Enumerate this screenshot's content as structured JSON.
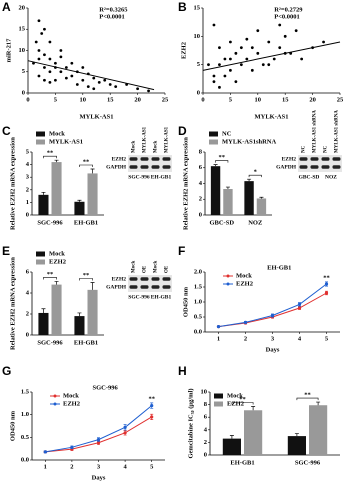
{
  "chart_data": [
    {
      "label": "A",
      "type": "scatter",
      "x": [
        2,
        2.5,
        3,
        1.5,
        2,
        3,
        4,
        2,
        5,
        6,
        1,
        3,
        4,
        5,
        6,
        7,
        8,
        9,
        10,
        11,
        12,
        13,
        14,
        15,
        16,
        18,
        20,
        22,
        3,
        4,
        2,
        5,
        7,
        8,
        9,
        11,
        6,
        4,
        10,
        12
      ],
      "y": [
        17,
        14,
        15,
        12,
        10,
        9,
        8,
        8,
        7,
        8.5,
        7,
        6,
        5,
        6,
        5,
        6,
        4,
        5,
        3,
        4.5,
        3.5,
        2.5,
        3,
        2,
        1.5,
        2,
        1,
        0.5,
        3,
        2.5,
        4,
        3,
        3.5,
        7,
        2,
        1.5,
        10,
        12,
        6,
        1
      ],
      "color": "#000000",
      "fit": {
        "x": [
          0,
          23
        ],
        "y": [
          7.6,
          0.8
        ]
      },
      "annotations": [
        "R²=0.3265",
        "P<0.0001"
      ],
      "xlabel": "MYLK-AS1",
      "ylabel": "miR-217",
      "xlim": [
        0,
        25
      ],
      "ylim": [
        0,
        20
      ],
      "xticks": [
        0,
        5,
        10,
        15,
        20,
        25
      ],
      "yticks": [
        0,
        5,
        10,
        15,
        20
      ]
    },
    {
      "label": "B",
      "type": "scatter",
      "x": [
        2,
        3,
        2,
        4,
        5,
        3,
        6,
        2,
        5,
        7,
        8,
        9,
        10,
        11,
        12,
        13,
        14,
        15,
        16,
        17,
        18,
        20,
        22,
        4,
        6,
        3,
        8,
        10,
        5,
        7,
        1,
        12,
        14,
        9,
        15
      ],
      "y": [
        3,
        5,
        2,
        6,
        4,
        8,
        7,
        12,
        9,
        5,
        6,
        8,
        7,
        5,
        9,
        6,
        8,
        10,
        7,
        11,
        6,
        8,
        9,
        3,
        2,
        1,
        9.5,
        11,
        6,
        8,
        5,
        5,
        12,
        4,
        7
      ],
      "color": "#000000",
      "fit": {
        "x": [
          0,
          25
        ],
        "y": [
          4,
          9
        ]
      },
      "annotations": [
        "R²=0.2729",
        "P<0.0001"
      ],
      "xlabel": "MYLK-AS1",
      "ylabel": "EZH2",
      "xlim": [
        0,
        25
      ],
      "ylim": [
        0,
        15
      ],
      "xticks": [
        0,
        5,
        10,
        15,
        20,
        25
      ],
      "yticks": [
        0,
        5,
        10,
        15
      ]
    },
    {
      "label": "C",
      "type": "bar",
      "categories": [
        "SGC-996",
        "EH-GB1"
      ],
      "series": [
        {
          "name": "Mock",
          "color": "#111111",
          "values": [
            1.6,
            1.05
          ],
          "errors": [
            0.2,
            0.12
          ]
        },
        {
          "name": "MYLK-AS1",
          "color": "#999999",
          "values": [
            4.2,
            3.3
          ],
          "errors": [
            0.15,
            0.35
          ]
        }
      ],
      "significance": [
        "**",
        "**"
      ],
      "ylabel": "Relative EZH2 mRNA expression",
      "ylim": [
        0,
        5
      ],
      "yticks": [
        0,
        1,
        2,
        3,
        4,
        5
      ],
      "legend": "above",
      "blot": {
        "lanes": [
          "Mock",
          "MYLK-AS1",
          "Mock",
          "MYLK-AS1"
        ],
        "rows": [
          "EZH2",
          "GAPDH"
        ],
        "groups": [
          "SGC-996",
          "EH-GB1"
        ]
      }
    },
    {
      "label": "D",
      "type": "bar",
      "categories": [
        "GBC-SD",
        "NOZ"
      ],
      "series": [
        {
          "name": "NC",
          "color": "#111111",
          "values": [
            6.2,
            4.3
          ],
          "errors": [
            0.2,
            0.25
          ]
        },
        {
          "name": "MYLK-AS1shRNA",
          "color": "#999999",
          "values": [
            3.3,
            2.1
          ],
          "errors": [
            0.25,
            0.15
          ]
        }
      ],
      "significance": [
        "**",
        "*"
      ],
      "ylabel": "Relative EZH2 mRNA expression",
      "ylim": [
        0,
        8
      ],
      "yticks": [
        0,
        2,
        4,
        6,
        8
      ],
      "legend": "above",
      "blot": {
        "lanes": [
          "NC",
          "MYLK-AS1 shRNA",
          "NC",
          "MYLK-AS1 shRNA"
        ],
        "rows": [
          "EZH2",
          "GAPDH"
        ],
        "groups": [
          "GBC-SD",
          "NOZ"
        ]
      }
    },
    {
      "label": "E",
      "type": "bar",
      "categories": [
        "SGC-996",
        "EH-GB1"
      ],
      "series": [
        {
          "name": "Mock",
          "color": "#111111",
          "values": [
            2.1,
            1.8
          ],
          "errors": [
            0.4,
            0.3
          ]
        },
        {
          "name": "EZH2",
          "color": "#999999",
          "values": [
            4.8,
            4.3
          ],
          "errors": [
            0.3,
            0.7
          ]
        }
      ],
      "significance": [
        "**",
        "**"
      ],
      "ylabel": "Relative EZH2 mRNA expression",
      "ylim": [
        0,
        6
      ],
      "yticks": [
        0,
        2,
        4,
        6
      ],
      "legend": "above",
      "blot": {
        "lanes": [
          "Mock",
          "OE",
          "Mock",
          "OE"
        ],
        "rows": [
          "EZH2",
          "GAPDH"
        ],
        "groups": [
          "SGC-996",
          "EH-GB1"
        ]
      }
    },
    {
      "label": "F",
      "type": "line",
      "title": "EH-GB1",
      "x": [
        1,
        2,
        3,
        4,
        5
      ],
      "series": [
        {
          "name": "Mock",
          "color": "#e0302f",
          "values": [
            0.18,
            0.3,
            0.5,
            0.8,
            1.3
          ],
          "errors": [
            0.02,
            0.03,
            0.04,
            0.05,
            0.06
          ]
        },
        {
          "name": "EZH2",
          "color": "#1f5fd0",
          "values": [
            0.18,
            0.32,
            0.55,
            0.92,
            1.6
          ],
          "errors": [
            0.02,
            0.03,
            0.05,
            0.06,
            0.07
          ]
        }
      ],
      "significance": "**",
      "xlabel": "Days",
      "ylabel": "OD450 nm",
      "xlim": [
        0.5,
        5.5
      ],
      "xticks": [
        1,
        2,
        3,
        4,
        5
      ],
      "ylim": [
        0,
        2
      ],
      "yticks": [
        {
          "value": 0,
          "label": "0.0"
        },
        0.5,
        {
          "value": 1,
          "label": "1.0"
        },
        1.5,
        {
          "value": 2,
          "label": "2.0"
        }
      ],
      "legend": "inside"
    },
    {
      "label": "G",
      "type": "line",
      "title": "SGC-996",
      "x": [
        1,
        2,
        3,
        4,
        5
      ],
      "series": [
        {
          "name": "Mock",
          "color": "#e0302f",
          "values": [
            0.18,
            0.24,
            0.38,
            0.6,
            0.95
          ],
          "errors": [
            0.02,
            0.03,
            0.04,
            0.05,
            0.06
          ]
        },
        {
          "name": "EZH2",
          "color": "#1f5fd0",
          "values": [
            0.18,
            0.28,
            0.45,
            0.72,
            1.2
          ],
          "errors": [
            0.02,
            0.03,
            0.04,
            0.06,
            0.06
          ]
        }
      ],
      "significance": "**",
      "xlabel": "Days",
      "ylabel": "OD450 nm",
      "xlim": [
        0.5,
        5.5
      ],
      "xticks": [
        1,
        2,
        3,
        4,
        5
      ],
      "ylim": [
        0,
        1.5
      ],
      "yticks": [
        {
          "value": 0,
          "label": "0.0"
        },
        0.5,
        {
          "value": 1,
          "label": "1.0"
        },
        1.5
      ],
      "legend": "inside"
    },
    {
      "label": "H",
      "type": "bar",
      "categories": [
        "EH-GB1",
        "SGC-996"
      ],
      "series": [
        {
          "name": "Mock",
          "color": "#111111",
          "values": [
            2.6,
            3.0
          ],
          "errors": [
            0.5,
            0.4
          ]
        },
        {
          "name": "EZH2",
          "color": "#999999",
          "values": [
            7.1,
            7.9
          ],
          "errors": [
            0.6,
            0.5
          ]
        }
      ],
      "significance": [
        "**",
        "**"
      ],
      "ylabel": "Gemcitabine IC₅₀ (μg/ml)",
      "ylim": [
        0,
        10
      ],
      "yticks": [
        0,
        2,
        4,
        6,
        8,
        10
      ],
      "legend": "inside"
    }
  ]
}
